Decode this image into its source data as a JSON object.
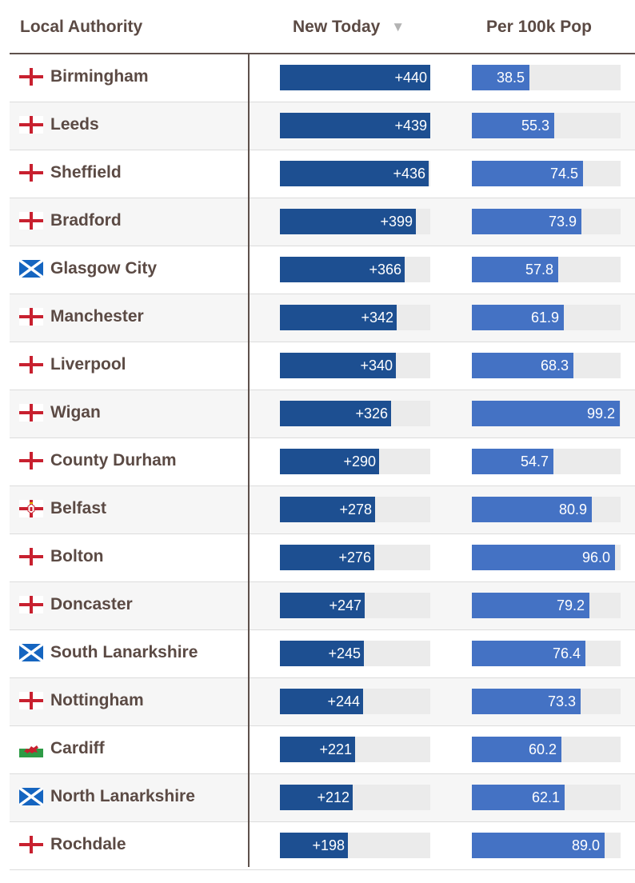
{
  "headers": {
    "authority": "Local Authority",
    "new_today": "New Today",
    "sort_indicator": "▼",
    "per_100k": "Per 100k Pop"
  },
  "colors": {
    "new_today_bar": "#1d4f91",
    "per_100k_bar": "#4472c4",
    "track": "#ebebeb",
    "text": "#5b4a44"
  },
  "chart_data": {
    "type": "bar",
    "title": "",
    "categories": [
      "Birmingham",
      "Leeds",
      "Sheffield",
      "Bradford",
      "Glasgow City",
      "Manchester",
      "Liverpool",
      "Wigan",
      "County Durham",
      "Belfast",
      "Bolton",
      "Doncaster",
      "South Lanarkshire",
      "Nottingham",
      "Cardiff",
      "North Lanarkshire",
      "Rochdale"
    ],
    "flags": [
      "england-flag-icon",
      "england-flag-icon",
      "england-flag-icon",
      "england-flag-icon",
      "scotland-flag-icon",
      "england-flag-icon",
      "england-flag-icon",
      "england-flag-icon",
      "england-flag-icon",
      "northern-ireland-flag-icon",
      "england-flag-icon",
      "england-flag-icon",
      "scotland-flag-icon",
      "england-flag-icon",
      "wales-flag-icon",
      "scotland-flag-icon",
      "england-flag-icon"
    ],
    "series": [
      {
        "name": "New Today",
        "values": [
          440,
          439,
          436,
          399,
          366,
          342,
          340,
          326,
          290,
          278,
          276,
          247,
          245,
          244,
          221,
          212,
          198
        ],
        "labels": [
          "+440",
          "+439",
          "+436",
          "+399",
          "+366",
          "+342",
          "+340",
          "+326",
          "+290",
          "+278",
          "+276",
          "+247",
          "+245",
          "+244",
          "+221",
          "+212",
          "+198"
        ],
        "max": 440
      },
      {
        "name": "Per 100k Pop",
        "values": [
          38.5,
          55.3,
          74.5,
          73.9,
          57.8,
          61.9,
          68.3,
          99.2,
          54.7,
          80.9,
          96.0,
          79.2,
          76.4,
          73.3,
          60.2,
          62.1,
          89.0
        ],
        "labels": [
          "38.5",
          "55.3",
          "74.5",
          "73.9",
          "57.8",
          "61.9",
          "68.3",
          "99.2",
          "54.7",
          "80.9",
          "96.0",
          "79.2",
          "76.4",
          "73.3",
          "60.2",
          "62.1",
          "89.0"
        ],
        "max": 100
      }
    ]
  }
}
